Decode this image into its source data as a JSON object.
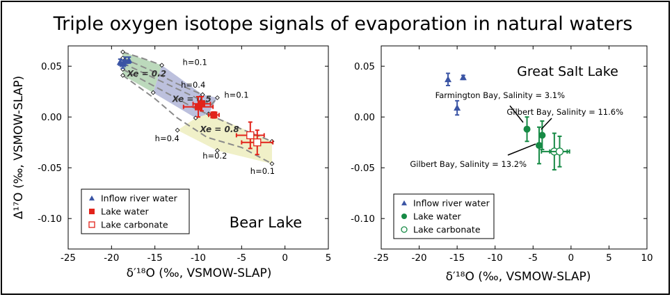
{
  "figure_title": "Triple oxygen isotope signals of evaporation in natural waters",
  "chart_data": [
    {
      "type": "scatter",
      "panel_title": "Bear Lake",
      "xlabel": "δ′¹⁸O (‰, VSMOW-SLAP)",
      "ylabel": "Δ¹⁷O (‰, VSMOW-SLAP)",
      "xlim": [
        -25,
        5
      ],
      "ylim": [
        -0.13,
        0.07
      ],
      "xticks": [
        -25,
        -20,
        -15,
        -10,
        -5,
        0,
        5
      ],
      "xtick_labels": [
        "-25",
        "-20",
        "-15",
        "-10",
        "-5",
        "0",
        "5"
      ],
      "yticks": [
        0.05,
        0.0,
        -0.05,
        -0.1
      ],
      "ytick_labels": [
        "0.05",
        "0.00",
        "-0.05",
        "-0.10"
      ],
      "bands": [
        {
          "name": "Xe = 0.2",
          "color": "#bcd9bc",
          "points": [
            [
              -18.7,
              0.064
            ],
            [
              -14.2,
              0.051
            ],
            [
              -15.2,
              0.024
            ],
            [
              -18.7,
              0.041
            ]
          ]
        },
        {
          "name": "Xe = 0.5",
          "color": "#bcc0dd",
          "points": [
            [
              -15.2,
              0.024
            ],
            [
              -14.2,
              0.051
            ],
            [
              -9.5,
              0.022
            ],
            [
              -7.8,
              0.019
            ],
            [
              -8.8,
              0.003
            ],
            [
              -10.3,
              -0.001
            ]
          ]
        },
        {
          "name": "Xe = 0.8",
          "color": "#f0f0c8",
          "points": [
            [
              -10.3,
              -0.001
            ],
            [
              -8.8,
              0.003
            ],
            [
              -1.5,
              -0.024
            ],
            [
              -1.5,
              -0.046
            ],
            [
              -7.8,
              -0.033
            ],
            [
              -12.4,
              -0.013
            ]
          ]
        }
      ],
      "curves": [
        {
          "points": [
            [
              -18.7,
              0.064
            ],
            [
              -16.5,
              0.058
            ],
            [
              -14.2,
              0.051
            ]
          ]
        },
        {
          "points": [
            [
              -18.7,
              0.058
            ],
            [
              -15.5,
              0.046
            ],
            [
              -12.5,
              0.033
            ],
            [
              -9.5,
              0.022
            ]
          ]
        },
        {
          "points": [
            [
              -18.7,
              0.053
            ],
            [
              -15,
              0.038
            ],
            [
              -11,
              0.022
            ],
            [
              -8.5,
              0.012
            ],
            [
              -7.8,
              0.019
            ]
          ]
        },
        {
          "points": [
            [
              -18.7,
              0.047
            ],
            [
              -15,
              0.03
            ],
            [
              -10.3,
              0.008
            ],
            [
              -5,
              -0.012
            ],
            [
              -1.5,
              -0.024
            ]
          ]
        },
        {
          "points": [
            [
              -18.7,
              0.041
            ],
            [
              -15,
              0.018
            ],
            [
              -12.4,
              -0.001
            ],
            [
              -9,
              -0.02
            ],
            [
              -5,
              -0.03
            ],
            [
              -1.5,
              -0.046
            ]
          ]
        }
      ],
      "vertices": [
        [
          -18.7,
          0.064
        ],
        [
          -18.7,
          0.058
        ],
        [
          -18.7,
          0.053
        ],
        [
          -18.7,
          0.047
        ],
        [
          -18.7,
          0.041
        ],
        [
          -14.2,
          0.051
        ],
        [
          -9.5,
          0.022
        ],
        [
          -7.8,
          0.019
        ],
        [
          -15.2,
          0.024
        ],
        [
          -10.3,
          -0.001
        ],
        [
          -8.8,
          0.003
        ],
        [
          -12.4,
          -0.013
        ],
        [
          -7.8,
          -0.033
        ],
        [
          -1.5,
          -0.024
        ],
        [
          -1.5,
          -0.046
        ]
      ],
      "band_labels": [
        {
          "text": "Xe = 0.2",
          "x": -18.2,
          "y": 0.04
        },
        {
          "text": "Xe = 0.5",
          "x": -13.0,
          "y": 0.015
        },
        {
          "text": "Xe = 0.8",
          "x": -9.8,
          "y": -0.015
        }
      ],
      "h_labels": [
        {
          "text": "h=0.1",
          "x": -11.8,
          "y": 0.051
        },
        {
          "text": "h=0.4",
          "x": -12.0,
          "y": 0.029
        },
        {
          "text": "h=0.1",
          "x": -7.0,
          "y": 0.019
        },
        {
          "text": "h=0.4",
          "x": -15.0,
          "y": -0.024
        },
        {
          "text": "h=0.2",
          "x": -9.5,
          "y": -0.041
        },
        {
          "text": "h=0.1",
          "x": -4.0,
          "y": -0.056
        }
      ],
      "series": [
        {
          "name": "Inflow river water",
          "marker": "triangle",
          "color": "#3a54a4",
          "points": [
            {
              "x": -19.0,
              "y": 0.054,
              "yerr": 0.003
            },
            {
              "x": -18.4,
              "y": 0.055,
              "yerr": 0.004
            },
            {
              "x": -18.0,
              "y": 0.056,
              "yerr": 0.003
            },
            {
              "x": -18.7,
              "y": 0.052,
              "yerr": 0.004
            }
          ]
        },
        {
          "name": "Lake water",
          "marker": "square",
          "color": "#e2231a",
          "points": [
            {
              "x": -10.0,
              "y": 0.01,
              "xerr": 1.7,
              "yerr": 0.01
            },
            {
              "x": -9.6,
              "y": 0.013,
              "xerr": 1.0,
              "yerr": 0.007
            },
            {
              "x": -8.2,
              "y": 0.002,
              "xerr": 0.6,
              "yerr": 0.003
            }
          ]
        },
        {
          "name": "Lake carbonate",
          "marker": "open-square",
          "color": "#e2231a",
          "points": [
            {
              "x": -4.0,
              "y": -0.018,
              "xerr": 1.6,
              "yerr": 0.013
            },
            {
              "x": -3.2,
              "y": -0.025,
              "xerr": 1.8,
              "yerr": 0.012
            }
          ]
        }
      ]
    },
    {
      "type": "scatter",
      "panel_title": "Great Salt Lake",
      "xlabel": "δ′¹⁸O (‰, VSMOW-SLAP)",
      "ylabel": "",
      "xlim": [
        -25,
        10
      ],
      "ylim": [
        -0.13,
        0.07
      ],
      "xticks": [
        -25,
        -20,
        -15,
        -10,
        -5,
        0,
        5,
        10
      ],
      "xtick_labels": [
        "-25",
        "-20",
        "-15",
        "-10",
        "-5",
        "0",
        "5",
        "10"
      ],
      "yticks": [
        0.05,
        0.0,
        -0.05,
        -0.1
      ],
      "ytick_labels": [
        "0.05",
        "0.00",
        "-0.05",
        "-0.10"
      ],
      "series": [
        {
          "name": "Inflow river water",
          "marker": "triangle",
          "color": "#3a54a4",
          "points": [
            {
              "x": -16.2,
              "y": 0.037,
              "yerr": 0.006
            },
            {
              "x": -14.2,
              "y": 0.039,
              "yerr": 0.002
            },
            {
              "x": -15.0,
              "y": 0.009,
              "yerr": 0.007
            }
          ]
        },
        {
          "name": "Lake water",
          "marker": "circle",
          "color": "#168a45",
          "points": [
            {
              "x": -5.8,
              "y": -0.012,
              "yerr": 0.012
            },
            {
              "x": -3.8,
              "y": -0.018,
              "yerr": 0.014
            },
            {
              "x": -4.2,
              "y": -0.028,
              "yerr": 0.018
            }
          ]
        },
        {
          "name": "Lake carbonate",
          "marker": "open-circle",
          "color": "#168a45",
          "points": [
            {
              "x": -2.2,
              "y": -0.034,
              "xerr": 1.7,
              "yerr": 0.018
            },
            {
              "x": -1.5,
              "y": -0.034,
              "xerr": 1.3,
              "yerr": 0.015
            }
          ]
        }
      ],
      "annotations": [
        {
          "text": "Farmington Bay, Salinity = 3.1%",
          "anchor": "end"
        },
        {
          "text": "Gilbert Bay, Salinity = 11.6%",
          "anchor": "end"
        },
        {
          "text": "Gilbert Bay, Salinity = 13.2%",
          "anchor": "end"
        }
      ]
    }
  ]
}
